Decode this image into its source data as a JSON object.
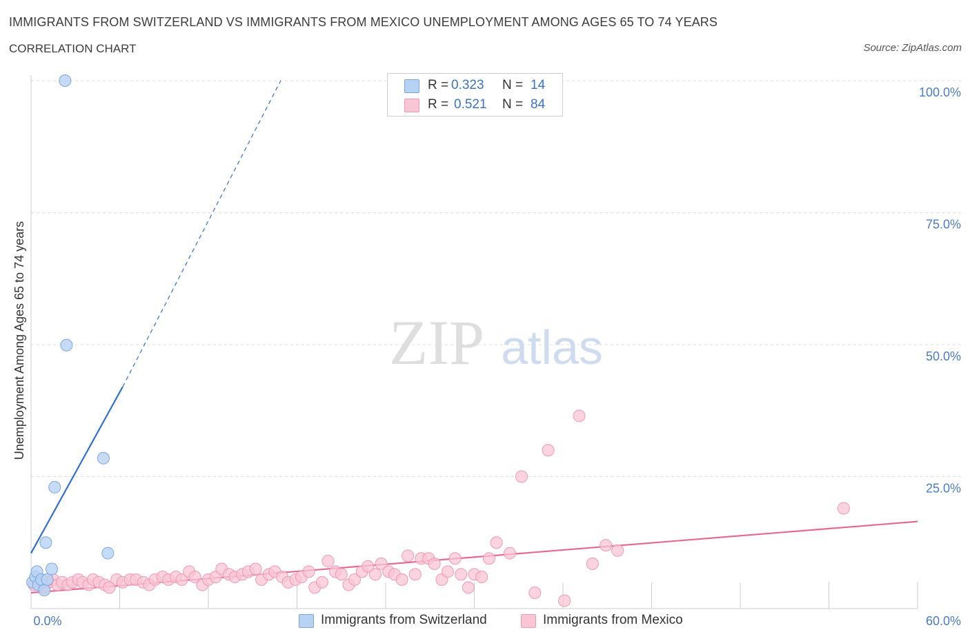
{
  "header": {
    "title": "IMMIGRANTS FROM SWITZERLAND VS IMMIGRANTS FROM MEXICO UNEMPLOYMENT AMONG AGES 65 TO 74 YEARS",
    "subtitle": "CORRELATION CHART",
    "source": "Source: ZipAtlas.com"
  },
  "watermark": {
    "zip": "ZIP",
    "atlas": "atlas"
  },
  "legend": {
    "r_label": "R =",
    "n_label": "N =",
    "rows": [
      {
        "series": "Immigrants from Switzerland",
        "r": "0.323",
        "n": "14"
      },
      {
        "series": "Immigrants from Mexico",
        "r": "0.521",
        "n": "84"
      }
    ]
  },
  "colors": {
    "switzerland_fill": "#b8d2f4",
    "switzerland_stroke": "#7aa6e0",
    "switzerland_line": "#2f6fcc",
    "mexico_fill": "#f9c6d5",
    "mexico_stroke": "#ef98b4",
    "mexico_line": "#e46a95",
    "tick_text": "#4a7cc6",
    "grid": "#dcdcdc"
  },
  "chart_data": {
    "type": "scatter",
    "title": "IMMIGRANTS FROM SWITZERLAND VS IMMIGRANTS FROM MEXICO UNEMPLOYMENT AMONG AGES 65 TO 74 YEARS",
    "xlabel": "",
    "ylabel": "Unemployment Among Ages 65 to 74 years",
    "xlim": [
      0,
      60
    ],
    "ylim": [
      0,
      100
    ],
    "x_tick_labels": [
      "0.0%",
      "60.0%"
    ],
    "y_ticks": [
      25,
      50,
      75,
      100
    ],
    "y_tick_labels": [
      "25.0%",
      "50.0%",
      "75.0%",
      "100.0%"
    ],
    "series": [
      {
        "name": "Immigrants from Switzerland",
        "points": [
          {
            "x": 0.1,
            "y": 5.0
          },
          {
            "x": 0.3,
            "y": 6.0
          },
          {
            "x": 0.4,
            "y": 7.0
          },
          {
            "x": 0.5,
            "y": 4.5
          },
          {
            "x": 0.7,
            "y": 5.5
          },
          {
            "x": 0.9,
            "y": 3.5
          },
          {
            "x": 1.1,
            "y": 5.5
          },
          {
            "x": 1.0,
            "y": 12.5
          },
          {
            "x": 1.4,
            "y": 7.5
          },
          {
            "x": 1.6,
            "y": 23.0
          },
          {
            "x": 2.3,
            "y": 100.0
          },
          {
            "x": 2.4,
            "y": 49.9
          },
          {
            "x": 4.9,
            "y": 28.5
          },
          {
            "x": 5.2,
            "y": 10.5
          }
        ],
        "trend": {
          "x0": 0.0,
          "y0": 10.5,
          "x1": 6.2,
          "y1": 42.0,
          "dashed_to": {
            "x": 16.9,
            "y": 100.0
          }
        }
      },
      {
        "name": "Immigrants from Mexico",
        "points": [
          {
            "x": 0.2,
            "y": 4.5
          },
          {
            "x": 0.5,
            "y": 5.5
          },
          {
            "x": 0.9,
            "y": 4.0
          },
          {
            "x": 1.2,
            "y": 5.0
          },
          {
            "x": 1.5,
            "y": 5.5
          },
          {
            "x": 1.8,
            "y": 4.5
          },
          {
            "x": 2.1,
            "y": 5.0
          },
          {
            "x": 2.5,
            "y": 4.5
          },
          {
            "x": 2.8,
            "y": 5.0
          },
          {
            "x": 3.2,
            "y": 5.5
          },
          {
            "x": 3.5,
            "y": 5.0
          },
          {
            "x": 3.9,
            "y": 4.5
          },
          {
            "x": 4.2,
            "y": 5.5
          },
          {
            "x": 4.6,
            "y": 5.0
          },
          {
            "x": 5.0,
            "y": 4.5
          },
          {
            "x": 5.3,
            "y": 4.0
          },
          {
            "x": 5.8,
            "y": 5.5
          },
          {
            "x": 6.2,
            "y": 5.0
          },
          {
            "x": 6.7,
            "y": 5.5
          },
          {
            "x": 7.1,
            "y": 5.5
          },
          {
            "x": 7.6,
            "y": 5.0
          },
          {
            "x": 8.0,
            "y": 4.5
          },
          {
            "x": 8.4,
            "y": 5.5
          },
          {
            "x": 8.9,
            "y": 6.0
          },
          {
            "x": 9.3,
            "y": 5.5
          },
          {
            "x": 9.8,
            "y": 6.0
          },
          {
            "x": 10.2,
            "y": 5.5
          },
          {
            "x": 10.7,
            "y": 7.0
          },
          {
            "x": 11.1,
            "y": 6.0
          },
          {
            "x": 11.6,
            "y": 4.5
          },
          {
            "x": 12.0,
            "y": 5.5
          },
          {
            "x": 12.5,
            "y": 6.0
          },
          {
            "x": 12.9,
            "y": 7.5
          },
          {
            "x": 13.4,
            "y": 6.5
          },
          {
            "x": 13.8,
            "y": 6.0
          },
          {
            "x": 14.3,
            "y": 6.5
          },
          {
            "x": 14.7,
            "y": 7.0
          },
          {
            "x": 15.2,
            "y": 7.5
          },
          {
            "x": 15.6,
            "y": 5.5
          },
          {
            "x": 16.1,
            "y": 6.5
          },
          {
            "x": 16.5,
            "y": 7.0
          },
          {
            "x": 17.0,
            "y": 6.0
          },
          {
            "x": 17.4,
            "y": 5.0
          },
          {
            "x": 17.9,
            "y": 5.5
          },
          {
            "x": 18.3,
            "y": 6.0
          },
          {
            "x": 18.8,
            "y": 7.0
          },
          {
            "x": 19.2,
            "y": 4.0
          },
          {
            "x": 19.7,
            "y": 5.0
          },
          {
            "x": 20.1,
            "y": 9.0
          },
          {
            "x": 20.6,
            "y": 7.0
          },
          {
            "x": 21.0,
            "y": 6.5
          },
          {
            "x": 21.5,
            "y": 4.5
          },
          {
            "x": 21.9,
            "y": 5.5
          },
          {
            "x": 22.4,
            "y": 7.0
          },
          {
            "x": 22.8,
            "y": 8.0
          },
          {
            "x": 23.3,
            "y": 6.5
          },
          {
            "x": 23.7,
            "y": 8.5
          },
          {
            "x": 24.2,
            "y": 7.0
          },
          {
            "x": 24.6,
            "y": 6.5
          },
          {
            "x": 25.1,
            "y": 5.5
          },
          {
            "x": 25.5,
            "y": 10.0
          },
          {
            "x": 26.0,
            "y": 6.5
          },
          {
            "x": 26.4,
            "y": 9.5
          },
          {
            "x": 26.9,
            "y": 9.5
          },
          {
            "x": 27.3,
            "y": 8.5
          },
          {
            "x": 27.8,
            "y": 5.5
          },
          {
            "x": 28.2,
            "y": 7.0
          },
          {
            "x": 28.7,
            "y": 9.5
          },
          {
            "x": 29.1,
            "y": 6.5
          },
          {
            "x": 29.6,
            "y": 4.0
          },
          {
            "x": 30.0,
            "y": 6.5
          },
          {
            "x": 30.5,
            "y": 6.0
          },
          {
            "x": 31.0,
            "y": 9.5
          },
          {
            "x": 31.5,
            "y": 12.5
          },
          {
            "x": 32.4,
            "y": 10.5
          },
          {
            "x": 33.2,
            "y": 25.0
          },
          {
            "x": 34.1,
            "y": 3.0
          },
          {
            "x": 35.0,
            "y": 30.0
          },
          {
            "x": 36.1,
            "y": 1.5
          },
          {
            "x": 37.1,
            "y": 36.5
          },
          {
            "x": 38.0,
            "y": 8.5
          },
          {
            "x": 38.9,
            "y": 12.0
          },
          {
            "x": 39.7,
            "y": 11.0
          },
          {
            "x": 55.0,
            "y": 19.0
          }
        ],
        "trend": {
          "x0": 0.0,
          "y0": 3.0,
          "x1": 60.0,
          "y1": 16.5
        }
      }
    ]
  }
}
